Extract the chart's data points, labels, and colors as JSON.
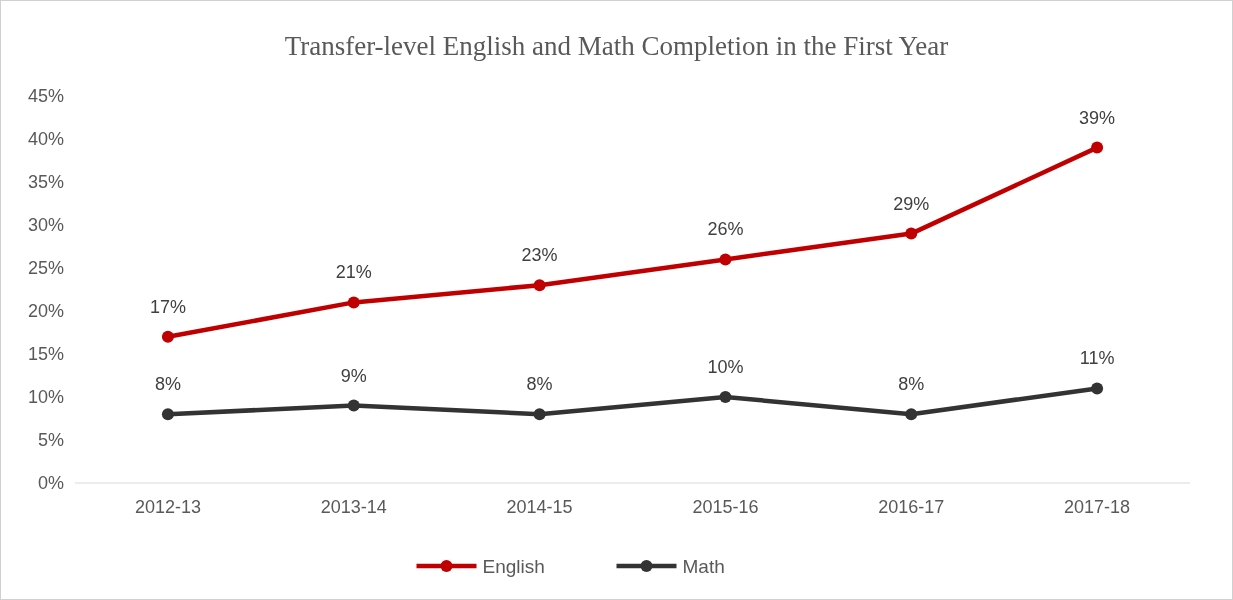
{
  "chart_data": {
    "type": "line",
    "title": "Transfer-level English and Math Completion in the First Year",
    "categories": [
      "2012-13",
      "2013-14",
      "2014-15",
      "2015-16",
      "2016-17",
      "2017-18"
    ],
    "series": [
      {
        "name": "English",
        "color": "#c00000",
        "values": [
          17,
          21,
          23,
          26,
          29,
          39
        ],
        "value_labels": [
          "17%",
          "21%",
          "23%",
          "26%",
          "29%",
          "39%"
        ]
      },
      {
        "name": "Math",
        "color": "#333333",
        "values": [
          8,
          9,
          8,
          10,
          8,
          11
        ],
        "value_labels": [
          "8%",
          "9%",
          "8%",
          "10%",
          "8%",
          "11%"
        ]
      }
    ],
    "ylim": [
      0,
      45
    ],
    "yticks": [
      {
        "value": 0,
        "label": "0%"
      },
      {
        "value": 5,
        "label": "5%"
      },
      {
        "value": 10,
        "label": "10%"
      },
      {
        "value": 15,
        "label": "15%"
      },
      {
        "value": 20,
        "label": "20%"
      },
      {
        "value": 25,
        "label": "25%"
      },
      {
        "value": 30,
        "label": "30%"
      },
      {
        "value": 35,
        "label": "35%"
      },
      {
        "value": 40,
        "label": "40%"
      },
      {
        "value": 45,
        "label": "45%"
      }
    ],
    "grid": false,
    "legend": "bottom",
    "marker": "circle",
    "line_style": "solid"
  }
}
